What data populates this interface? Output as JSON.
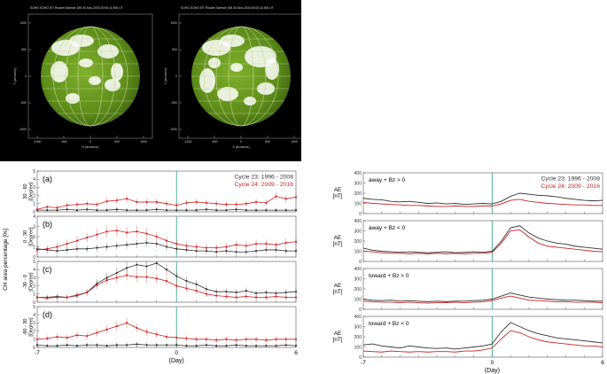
{
  "solar_images": [
    {
      "header": "SOHO SOHO EIT Rocket Science 195 30-Nov-2003 00:00:11.906 UT",
      "xlabel": "X (arcsecs)",
      "ylabel": "Y (arcsecs)",
      "xticks": [
        "-1000",
        "-500",
        "0",
        "500",
        "1000"
      ],
      "yticks": [
        "1000",
        "500",
        "0",
        "-500",
        "-1000"
      ]
    },
    {
      "header": "SOHO SOHO EIT Rocket Science 195 30-Nov-2003 00:00:11.906 UT",
      "xlabel": "X (arcsecs)",
      "ylabel": "Y (arcsecs)",
      "xticks": [
        "-1000",
        "-500",
        "0",
        "500",
        "1000"
      ],
      "yticks": [
        "1000",
        "500",
        "0",
        "-500",
        "-1000"
      ]
    }
  ],
  "colors": {
    "cycle23": "#333333",
    "cycle24": "#cc2222",
    "zero_line": "#3aa88a",
    "disk": "#6a9a20",
    "coronal_hole": "#ffffff",
    "grid": "#c8d89a"
  },
  "chart_data": [
    {
      "type": "line",
      "title": "",
      "ylabel": "CH area percentage [%]",
      "xlabel": "(Day)",
      "xticks": [
        -7,
        0,
        6
      ],
      "x": [
        -7,
        -6.5,
        -6,
        -5.5,
        -5,
        -4.5,
        -4,
        -3.5,
        -3,
        -2.5,
        -2,
        -1.5,
        -1,
        -0.5,
        0,
        0.5,
        1,
        1.5,
        2,
        2.5,
        3,
        3.5,
        4,
        4.5,
        5,
        5.5,
        6
      ],
      "legend": [
        "Cycle 23: 1996 - 2008",
        "Cycle 24: 2009 - 2016"
      ],
      "panels": [
        {
          "label": "(a)",
          "ylabel": "30 - 60\n[Degree]",
          "ylim": [
            0,
            5
          ],
          "yticks": [
            0,
            1,
            2,
            3,
            4,
            5
          ],
          "series": [
            {
              "name": "Cycle 23: 1996 - 2008",
              "values": [
                0.2,
                0.2,
                0.2,
                0.3,
                0.2,
                0.3,
                0.2,
                0.2,
                0.3,
                0.2,
                0.2,
                0.2,
                0.3,
                0.2,
                0.2,
                0.2,
                0.2,
                0.3,
                0.2,
                0.2,
                0.3,
                0.2,
                0.2,
                0.2,
                0.2,
                0.2,
                0.2
              ]
            },
            {
              "name": "Cycle 24: 2009 - 2016",
              "values": [
                0.3,
                0.6,
                0.5,
                0.8,
                0.9,
                1.0,
                0.9,
                1.3,
                1.4,
                1.6,
                1.2,
                1.2,
                1.2,
                1.0,
                0.8,
                1.1,
                1.2,
                1.1,
                1.0,
                0.9,
                0.9,
                1.0,
                1.2,
                1.1,
                1.9,
                1.6,
                1.8
              ]
            }
          ]
        },
        {
          "label": "(b)",
          "ylabel": "0 - 30\n[Degree]",
          "ylim": [
            0,
            4
          ],
          "yticks": [
            0,
            1,
            2,
            3,
            4
          ],
          "series": [
            {
              "name": "Cycle 23: 1996 - 2008",
              "values": [
                0.8,
                0.7,
                0.6,
                0.7,
                0.8,
                0.8,
                0.9,
                1.0,
                1.1,
                1.2,
                1.3,
                1.4,
                1.3,
                1.0,
                0.8,
                0.7,
                0.6,
                0.6,
                0.5,
                0.6,
                0.5,
                0.5,
                0.6,
                0.7,
                0.7,
                0.6,
                0.6
              ]
            },
            {
              "name": "Cycle 24: 2009 - 2016",
              "values": [
                0.7,
                0.8,
                1.0,
                1.3,
                1.6,
                1.9,
                2.2,
                2.5,
                2.6,
                2.4,
                2.5,
                2.3,
                2.0,
                1.6,
                1.3,
                1.1,
                1.0,
                0.9,
                0.9,
                1.0,
                1.2,
                1.1,
                1.3,
                1.3,
                1.2,
                1.4,
                1.5
              ]
            }
          ]
        },
        {
          "label": "(c)",
          "ylabel": "-30 - 0\n[Degree]",
          "ylim": [
            0,
            5
          ],
          "yticks": [
            0,
            1,
            2,
            3,
            4,
            5
          ],
          "series": [
            {
              "name": "Cycle 23: 1996 - 2008",
              "values": [
                0.6,
                0.6,
                0.7,
                0.6,
                0.8,
                1.2,
                2.3,
                3.0,
                3.6,
                4.2,
                4.6,
                4.4,
                4.8,
                4.0,
                3.2,
                2.6,
                2.2,
                1.6,
                1.3,
                1.3,
                1.2,
                1.4,
                1.1,
                1.2,
                1.1,
                1.2,
                1.3
              ]
            },
            {
              "name": "Cycle 24: 2009 - 2016",
              "values": [
                0.6,
                0.5,
                0.6,
                0.6,
                0.9,
                1.2,
                2.1,
                2.7,
                3.0,
                3.3,
                3.1,
                3.1,
                2.9,
                2.6,
                2.0,
                1.7,
                1.4,
                1.0,
                0.8,
                0.7,
                0.6,
                0.7,
                0.6,
                0.6,
                0.7,
                0.6,
                0.6
              ]
            }
          ]
        },
        {
          "label": "(d)",
          "ylabel": "-60 - 30\n[Degree]",
          "ylim": [
            0,
            5
          ],
          "yticks": [
            0,
            1,
            2,
            3,
            4,
            5
          ],
          "series": [
            {
              "name": "Cycle 23: 1996 - 2008",
              "values": [
                0.3,
                0.2,
                0.2,
                0.3,
                0.2,
                0.3,
                0.3,
                0.2,
                0.3,
                0.3,
                0.4,
                0.3,
                0.3,
                0.3,
                0.3,
                0.2,
                0.2,
                0.3,
                0.2,
                0.2,
                0.3,
                0.2,
                0.2,
                0.2,
                0.2,
                0.3,
                0.2
              ]
            },
            {
              "name": "Cycle 24: 2009 - 2016",
              "values": [
                1.0,
                1.1,
                1.3,
                1.2,
                1.5,
                1.4,
                1.8,
                2.2,
                2.6,
                3.0,
                2.4,
                1.9,
                1.6,
                1.3,
                1.2,
                1.1,
                1.0,
                1.0,
                0.9,
                1.0,
                0.9,
                1.0,
                1.0,
                0.9,
                1.0,
                1.0,
                1.0
              ]
            }
          ]
        }
      ]
    },
    {
      "type": "line",
      "title": "",
      "xlabel": "(Day)",
      "xticks": [
        -7,
        0,
        6
      ],
      "x": [
        -7,
        -6.5,
        -6,
        -5.5,
        -5,
        -4.5,
        -4,
        -3.5,
        -3,
        -2.5,
        -2,
        -1.5,
        -1,
        -0.5,
        0,
        0.5,
        1,
        1.5,
        2,
        2.5,
        3,
        3.5,
        4,
        4.5,
        5,
        5.5,
        6
      ],
      "legend": [
        "Cycle 23: 1996 - 2008",
        "Cycle 24: 2009 - 2016"
      ],
      "panels": [
        {
          "label": "away + Bz > 0",
          "ylabel": "AE\n[nT]",
          "ylim": [
            0,
            400
          ],
          "yticks": [
            0,
            100,
            200,
            300,
            400
          ],
          "series": [
            {
              "name": "Cycle 23: 1996 - 2008",
              "values": [
                150,
                140,
                135,
                120,
                115,
                120,
                110,
                100,
                105,
                95,
                100,
                90,
                95,
                100,
                95,
                120,
                170,
                200,
                190,
                180,
                175,
                165,
                150,
                140,
                130,
                125,
                130
              ]
            },
            {
              "name": "Cycle 24: 2009 - 2016",
              "values": [
                110,
                100,
                95,
                90,
                85,
                80,
                80,
                75,
                70,
                70,
                75,
                70,
                70,
                75,
                75,
                95,
                130,
                140,
                120,
                110,
                100,
                95,
                90,
                85,
                85,
                80,
                80
              ]
            }
          ]
        },
        {
          "label": "away + Bz < 0",
          "ylabel": "AE\n[nT]",
          "ylim": [
            0,
            400
          ],
          "yticks": [
            0,
            100,
            200,
            300,
            400
          ],
          "series": [
            {
              "name": "Cycle 23: 1996 - 2008",
              "values": [
                130,
                110,
                100,
                95,
                90,
                95,
                90,
                85,
                90,
                95,
                85,
                90,
                95,
                90,
                100,
                200,
                330,
                350,
                280,
                230,
                200,
                180,
                170,
                150,
                140,
                130,
                120
              ]
            },
            {
              "name": "Cycle 24: 2009 - 2016",
              "values": [
                100,
                95,
                85,
                80,
                80,
                75,
                80,
                75,
                80,
                75,
                80,
                75,
                80,
                80,
                90,
                180,
                300,
                310,
                240,
                180,
                150,
                140,
                130,
                120,
                110,
                100,
                95
              ]
            }
          ]
        },
        {
          "label": "toward + Bz > 0",
          "ylabel": "AE\n[nT]",
          "ylim": [
            0,
            400
          ],
          "yticks": [
            0,
            100,
            200,
            300,
            400
          ],
          "series": [
            {
              "name": "Cycle 23: 1996 - 2008",
              "values": [
                100,
                90,
                85,
                90,
                80,
                85,
                80,
                75,
                80,
                75,
                80,
                80,
                85,
                90,
                100,
                130,
                160,
                140,
                120,
                110,
                100,
                95,
                90,
                90,
                85,
                80,
                80
              ]
            },
            {
              "name": "Cycle 24: 2009 - 2016",
              "values": [
                80,
                75,
                70,
                70,
                65,
                70,
                65,
                60,
                65,
                65,
                70,
                65,
                70,
                75,
                85,
                110,
                130,
                110,
                90,
                85,
                80,
                75,
                75,
                70,
                70,
                70,
                65
              ]
            }
          ]
        },
        {
          "label": "toward + Bz < 0",
          "ylabel": "AE\n[nT]",
          "ylim": [
            0,
            400
          ],
          "yticks": [
            0,
            100,
            200,
            300,
            400
          ],
          "series": [
            {
              "name": "Cycle 23: 1996 - 2008",
              "values": [
                120,
                130,
                110,
                100,
                90,
                110,
                100,
                90,
                85,
                90,
                80,
                90,
                100,
                110,
                130,
                250,
                340,
                300,
                260,
                230,
                210,
                190,
                180,
                170,
                160,
                150,
                140
              ]
            },
            {
              "name": "Cycle 24: 2009 - 2016",
              "values": [
                60,
                55,
                50,
                60,
                55,
                50,
                55,
                50,
                55,
                55,
                50,
                60,
                60,
                70,
                90,
                180,
                260,
                240,
                200,
                170,
                150,
                140,
                130,
                120,
                110,
                110,
                100
              ]
            }
          ]
        }
      ]
    }
  ]
}
